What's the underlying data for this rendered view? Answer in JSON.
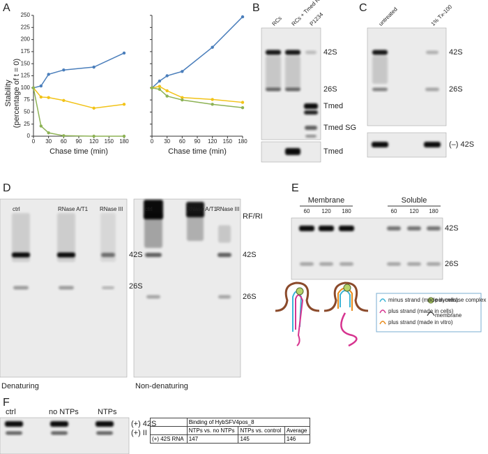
{
  "chart_data": [
    {
      "type": "line",
      "x": [
        0,
        15,
        30,
        60,
        120,
        180
      ],
      "xlim": [
        0,
        180
      ],
      "xticks": [
        0,
        30,
        60,
        90,
        120,
        150,
        180
      ],
      "ylim": [
        0,
        250
      ],
      "yticks": [
        0,
        25,
        50,
        75,
        100,
        125,
        150,
        175,
        200,
        225,
        250
      ],
      "xlabel": "Chase time (min)",
      "ylabel": [
        "Stability",
        "(percentage of t = 0)"
      ],
      "series": [
        {
          "color": "#4a7ebb",
          "values": [
            100,
            104,
            128,
            137,
            143,
            172
          ]
        },
        {
          "color": "#f2c318",
          "values": [
            100,
            81,
            80,
            74,
            58,
            66
          ]
        },
        {
          "color": "#8db255",
          "values": [
            100,
            21,
            7,
            1,
            0,
            0
          ]
        }
      ]
    },
    {
      "type": "line",
      "x": [
        0,
        15,
        30,
        60,
        120,
        180
      ],
      "xlim": [
        0,
        180
      ],
      "xticks": [
        0,
        30,
        60,
        90,
        120,
        150,
        180
      ],
      "ylim": [
        0,
        250
      ],
      "yticks": [
        0,
        25,
        50,
        75,
        100,
        125,
        150,
        175,
        200,
        225,
        250
      ],
      "xlabel": "Chase time (min)",
      "series": [
        {
          "color": "#4a7ebb",
          "values": [
            100,
            114,
            125,
            134,
            184,
            247
          ]
        },
        {
          "color": "#f2c318",
          "values": [
            100,
            103,
            94,
            80,
            76,
            70
          ]
        },
        {
          "color": "#8db255",
          "values": [
            100,
            97,
            83,
            75,
            66,
            59
          ]
        }
      ]
    }
  ],
  "panel_letters": [
    "A",
    "B",
    "C",
    "D",
    "E",
    "F"
  ],
  "B": {
    "lanes": [
      "RCs",
      "RCs + Tmed RNA",
      "P1234"
    ],
    "bands": [
      "42S",
      "26S",
      "Tmed",
      "Tmed SG"
    ],
    "lower_band": "Tmed"
  },
  "C": {
    "lanes": [
      "untreated",
      "1% Tx-100"
    ],
    "bands": [
      "42S",
      "26S"
    ],
    "lower_band": "(–) 42S"
  },
  "D": {
    "lanes": [
      "ctrl",
      "RNase A/T1",
      "RNase III"
    ],
    "gels": [
      {
        "bands": [
          "42S",
          "26S"
        ],
        "caption": "Denaturing"
      },
      {
        "bands": [
          "RF/RI",
          "42S",
          "26S"
        ],
        "caption": "Non-denaturing"
      }
    ]
  },
  "E": {
    "groups": [
      "Membrane",
      "Soluble"
    ],
    "lanes": [
      60,
      120,
      180
    ],
    "bands": [
      "42S",
      "26S"
    ],
    "legend": [
      "minus strand (made in cells)",
      "plus strand (made in cells)",
      "plus strand (made in vitro)",
      "polymerase complex",
      "membrane"
    ]
  },
  "F": {
    "lanes": [
      "ctrl",
      "no NTPs",
      "NTPs"
    ],
    "bands": [
      "(+) 42S",
      "(+) II"
    ],
    "table": {
      "title": "Binding of HybSFV4pos_8",
      "columns": [
        "NTPs vs. no NTPs",
        "NTPs vs. control",
        "Average"
      ],
      "rows": [
        [
          "(+) 42S RNA",
          147,
          145,
          146
        ]
      ]
    }
  }
}
